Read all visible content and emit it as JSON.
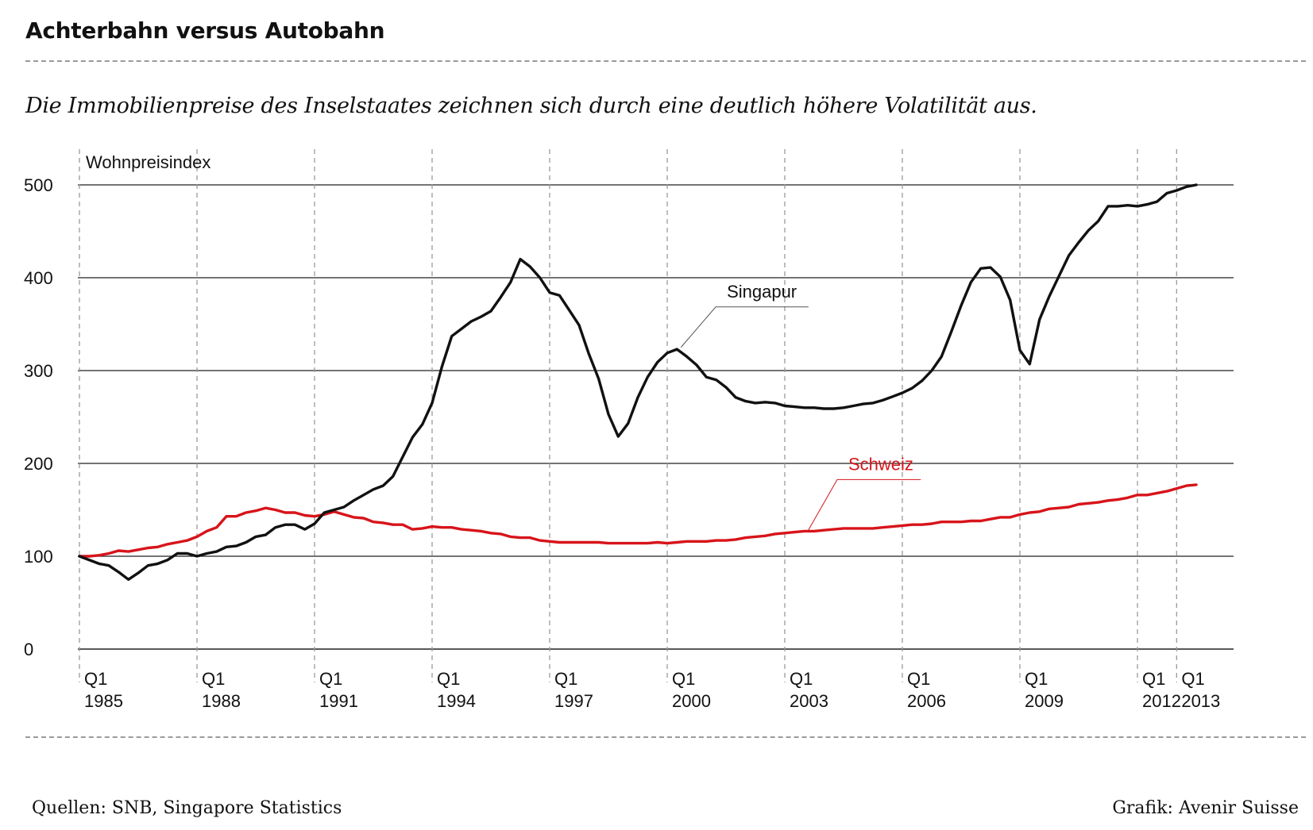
{
  "header": {
    "title": "Achterbahn versus Autobahn",
    "subtitle": "Die Immobilienpreise des Inselstaates zeichnen sich durch eine deutlich höhere Volatilität aus."
  },
  "footer": {
    "source": "Quellen: SNB, Singapore Statistics",
    "credit": "Grafik: Avenir Suisse"
  },
  "colors": {
    "singapur": "#111111",
    "schweiz": "#d7141a",
    "grid": "#222222",
    "vgrid": "#9a9a9a"
  },
  "chart_data": {
    "type": "line",
    "title": "Achterbahn versus Autobahn",
    "subtitle": "Die Immobilienpreise des Inselstaates zeichnen sich durch eine deutlich höhere Volatilität aus.",
    "ylabel": "Wohnpreisindex",
    "xlabel": "",
    "ylim": [
      0,
      500
    ],
    "yticks": [
      0,
      100,
      200,
      300,
      400,
      500
    ],
    "xlim": [
      1985.0,
      2013.0
    ],
    "xticks": [
      {
        "x": 1985,
        "line1": "Q1",
        "line2": "1985"
      },
      {
        "x": 1988,
        "line1": "Q1",
        "line2": "1988"
      },
      {
        "x": 1991,
        "line1": "Q1",
        "line2": "1991"
      },
      {
        "x": 1994,
        "line1": "Q1",
        "line2": "1994"
      },
      {
        "x": 1997,
        "line1": "Q1",
        "line2": "1997"
      },
      {
        "x": 2000,
        "line1": "Q1",
        "line2": "2000"
      },
      {
        "x": 2003,
        "line1": "Q1",
        "line2": "2003"
      },
      {
        "x": 2006,
        "line1": "Q1",
        "line2": "2006"
      },
      {
        "x": 2009,
        "line1": "Q1",
        "line2": "2009"
      },
      {
        "x": 2012,
        "line1": "Q1",
        "line2": "2012"
      },
      {
        "x": 2013,
        "line1": "Q1",
        "line2": "2013"
      }
    ],
    "grid": {
      "horizontal": true,
      "vertical": "dashed"
    },
    "series": [
      {
        "name": "Singapur",
        "color": "#111111",
        "points": [
          [
            1985.0,
            100
          ],
          [
            1985.5,
            92
          ],
          [
            1985.75,
            90
          ],
          [
            1986.0,
            83
          ],
          [
            1986.25,
            75
          ],
          [
            1986.5,
            82
          ],
          [
            1986.75,
            90
          ],
          [
            1987.0,
            92
          ],
          [
            1987.25,
            96
          ],
          [
            1987.5,
            103
          ],
          [
            1987.75,
            103
          ],
          [
            1988.0,
            100
          ],
          [
            1988.25,
            103
          ],
          [
            1988.5,
            105
          ],
          [
            1988.75,
            110
          ],
          [
            1989.0,
            111
          ],
          [
            1989.25,
            115
          ],
          [
            1989.5,
            121
          ],
          [
            1989.75,
            123
          ],
          [
            1990.0,
            131
          ],
          [
            1990.25,
            134
          ],
          [
            1990.5,
            134
          ],
          [
            1990.75,
            129
          ],
          [
            1991.0,
            135
          ],
          [
            1991.25,
            147
          ],
          [
            1991.5,
            150
          ],
          [
            1991.75,
            153
          ],
          [
            1992.0,
            160
          ],
          [
            1992.25,
            166
          ],
          [
            1992.5,
            172
          ],
          [
            1992.75,
            176
          ],
          [
            1993.0,
            186
          ],
          [
            1993.25,
            207
          ],
          [
            1993.5,
            228
          ],
          [
            1993.75,
            242
          ],
          [
            1994.0,
            265
          ],
          [
            1994.25,
            304
          ],
          [
            1994.5,
            337
          ],
          [
            1994.75,
            345
          ],
          [
            1995.0,
            353
          ],
          [
            1995.25,
            358
          ],
          [
            1995.5,
            364
          ],
          [
            1995.75,
            379
          ],
          [
            1996.0,
            395
          ],
          [
            1996.25,
            420
          ],
          [
            1996.5,
            412
          ],
          [
            1996.75,
            400
          ],
          [
            1997.0,
            384
          ],
          [
            1997.25,
            381
          ],
          [
            1997.5,
            365
          ],
          [
            1997.75,
            349
          ],
          [
            1998.0,
            318
          ],
          [
            1998.25,
            291
          ],
          [
            1998.5,
            253
          ],
          [
            1998.75,
            229
          ],
          [
            1999.0,
            243
          ],
          [
            1999.25,
            271
          ],
          [
            1999.5,
            293
          ],
          [
            1999.75,
            309
          ],
          [
            2000.0,
            319
          ],
          [
            2000.25,
            323
          ],
          [
            2000.5,
            315
          ],
          [
            2000.75,
            306
          ],
          [
            2001.0,
            293
          ],
          [
            2001.25,
            290
          ],
          [
            2001.5,
            282
          ],
          [
            2001.75,
            271
          ],
          [
            2002.0,
            267
          ],
          [
            2002.25,
            265
          ],
          [
            2002.5,
            266
          ],
          [
            2002.75,
            265
          ],
          [
            2003.0,
            262
          ],
          [
            2003.25,
            261
          ],
          [
            2003.5,
            260
          ],
          [
            2003.75,
            260
          ],
          [
            2004.0,
            259
          ],
          [
            2004.25,
            259
          ],
          [
            2004.5,
            260
          ],
          [
            2004.75,
            262
          ],
          [
            2005.0,
            264
          ],
          [
            2005.25,
            265
          ],
          [
            2005.5,
            268
          ],
          [
            2005.75,
            272
          ],
          [
            2006.0,
            276
          ],
          [
            2006.25,
            281
          ],
          [
            2006.5,
            289
          ],
          [
            2006.75,
            300
          ],
          [
            2007.0,
            315
          ],
          [
            2007.25,
            342
          ],
          [
            2007.5,
            370
          ],
          [
            2007.75,
            395
          ],
          [
            2008.0,
            410
          ],
          [
            2008.25,
            411
          ],
          [
            2008.5,
            401
          ],
          [
            2008.75,
            376
          ],
          [
            2009.0,
            322
          ],
          [
            2009.25,
            307
          ],
          [
            2009.5,
            355
          ],
          [
            2009.75,
            380
          ],
          [
            2010.0,
            402
          ],
          [
            2010.25,
            424
          ],
          [
            2010.5,
            438
          ],
          [
            2010.75,
            451
          ],
          [
            2011.0,
            461
          ],
          [
            2011.25,
            477
          ],
          [
            2011.5,
            477
          ],
          [
            2011.75,
            478
          ],
          [
            2012.0,
            477
          ],
          [
            2012.25,
            479
          ],
          [
            2012.5,
            482
          ],
          [
            2012.75,
            491
          ],
          [
            2013.0,
            494
          ],
          [
            2013.25,
            498
          ],
          [
            2013.5,
            500
          ]
        ]
      },
      {
        "name": "Schweiz",
        "color": "#d7141a",
        "points": [
          [
            1985.0,
            100
          ],
          [
            1985.25,
            100
          ],
          [
            1985.5,
            101
          ],
          [
            1985.75,
            103
          ],
          [
            1986.0,
            106
          ],
          [
            1986.25,
            105
          ],
          [
            1986.5,
            107
          ],
          [
            1986.75,
            109
          ],
          [
            1987.0,
            110
          ],
          [
            1987.25,
            113
          ],
          [
            1987.5,
            115
          ],
          [
            1987.75,
            117
          ],
          [
            1988.0,
            121
          ],
          [
            1988.25,
            127
          ],
          [
            1988.5,
            131
          ],
          [
            1988.75,
            143
          ],
          [
            1989.0,
            143
          ],
          [
            1989.25,
            147
          ],
          [
            1989.5,
            149
          ],
          [
            1989.75,
            152
          ],
          [
            1990.0,
            150
          ],
          [
            1990.25,
            147
          ],
          [
            1990.5,
            147
          ],
          [
            1990.75,
            144
          ],
          [
            1991.0,
            143
          ],
          [
            1991.25,
            145
          ],
          [
            1991.5,
            148
          ],
          [
            1991.75,
            145
          ],
          [
            1992.0,
            142
          ],
          [
            1992.25,
            141
          ],
          [
            1992.5,
            137
          ],
          [
            1992.75,
            136
          ],
          [
            1993.0,
            134
          ],
          [
            1993.25,
            134
          ],
          [
            1993.5,
            129
          ],
          [
            1993.75,
            130
          ],
          [
            1994.0,
            132
          ],
          [
            1994.25,
            131
          ],
          [
            1994.5,
            131
          ],
          [
            1994.75,
            129
          ],
          [
            1995.0,
            128
          ],
          [
            1995.25,
            127
          ],
          [
            1995.5,
            125
          ],
          [
            1995.75,
            124
          ],
          [
            1996.0,
            121
          ],
          [
            1996.25,
            120
          ],
          [
            1996.5,
            120
          ],
          [
            1996.75,
            117
          ],
          [
            1997.0,
            116
          ],
          [
            1997.25,
            115
          ],
          [
            1997.5,
            115
          ],
          [
            1997.75,
            115
          ],
          [
            1998.0,
            115
          ],
          [
            1998.25,
            115
          ],
          [
            1998.5,
            114
          ],
          [
            1998.75,
            114
          ],
          [
            1999.0,
            114
          ],
          [
            1999.25,
            114
          ],
          [
            1999.5,
            114
          ],
          [
            1999.75,
            115
          ],
          [
            2000.0,
            114
          ],
          [
            2000.25,
            115
          ],
          [
            2000.5,
            116
          ],
          [
            2000.75,
            116
          ],
          [
            2001.0,
            116
          ],
          [
            2001.25,
            117
          ],
          [
            2001.5,
            117
          ],
          [
            2001.75,
            118
          ],
          [
            2002.0,
            120
          ],
          [
            2002.25,
            121
          ],
          [
            2002.5,
            122
          ],
          [
            2002.75,
            124
          ],
          [
            2003.0,
            125
          ],
          [
            2003.25,
            126
          ],
          [
            2003.5,
            127
          ],
          [
            2003.75,
            127
          ],
          [
            2004.0,
            128
          ],
          [
            2004.25,
            129
          ],
          [
            2004.5,
            130
          ],
          [
            2004.75,
            130
          ],
          [
            2005.0,
            130
          ],
          [
            2005.25,
            130
          ],
          [
            2005.5,
            131
          ],
          [
            2005.75,
            132
          ],
          [
            2006.0,
            133
          ],
          [
            2006.25,
            134
          ],
          [
            2006.5,
            134
          ],
          [
            2006.75,
            135
          ],
          [
            2007.0,
            137
          ],
          [
            2007.25,
            137
          ],
          [
            2007.5,
            137
          ],
          [
            2007.75,
            138
          ],
          [
            2008.0,
            138
          ],
          [
            2008.25,
            140
          ],
          [
            2008.5,
            142
          ],
          [
            2008.75,
            142
          ],
          [
            2009.0,
            145
          ],
          [
            2009.25,
            147
          ],
          [
            2009.5,
            148
          ],
          [
            2009.75,
            151
          ],
          [
            2010.0,
            152
          ],
          [
            2010.25,
            153
          ],
          [
            2010.5,
            156
          ],
          [
            2010.75,
            157
          ],
          [
            2011.0,
            158
          ],
          [
            2011.25,
            160
          ],
          [
            2011.5,
            161
          ],
          [
            2011.75,
            163
          ],
          [
            2012.0,
            166
          ],
          [
            2012.25,
            166
          ],
          [
            2012.5,
            168
          ],
          [
            2012.75,
            170
          ],
          [
            2013.0,
            173
          ],
          [
            2013.25,
            176
          ],
          [
            2013.5,
            177
          ]
        ]
      }
    ],
    "annotations": [
      {
        "series": "Singapur",
        "text": "Singapur",
        "anchor": [
          2000.35,
          325
        ],
        "label_at": [
          2001.4,
          372
        ]
      },
      {
        "series": "Schweiz",
        "text": "Schweiz",
        "anchor": [
          2003.6,
          128
        ],
        "label_at": [
          2004.5,
          186
        ]
      }
    ]
  }
}
